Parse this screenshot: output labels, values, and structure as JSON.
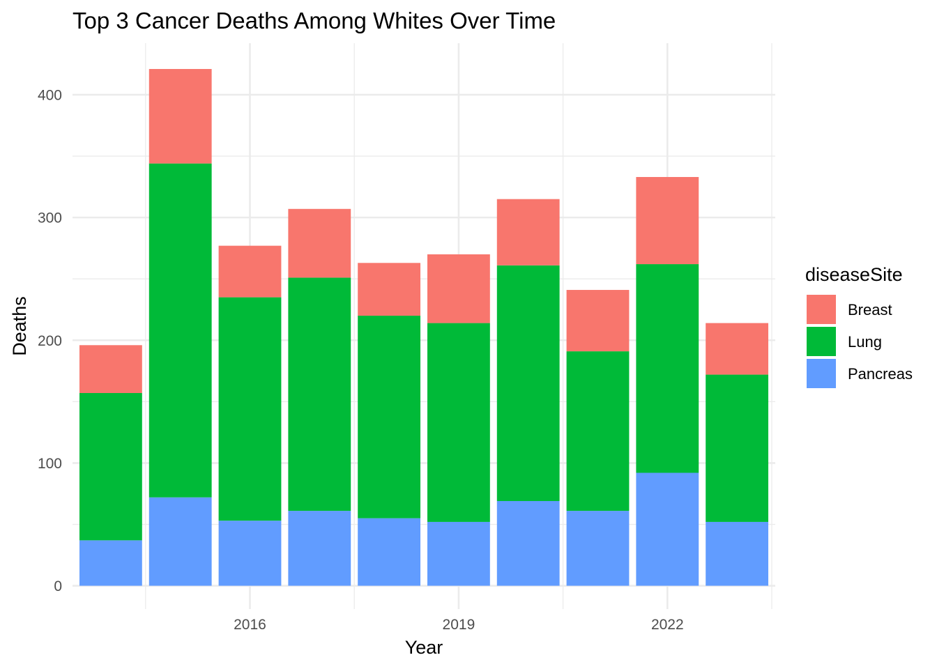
{
  "chart_data": {
    "type": "bar",
    "stacked": true,
    "title": "Top 3 Cancer Deaths Among Whites Over Time",
    "xlabel": "Year",
    "ylabel": "Deaths",
    "x": [
      2014,
      2015,
      2016,
      2017,
      2018,
      2019,
      2020,
      2021,
      2022,
      2023
    ],
    "x_ticks": [
      2016,
      2019,
      2022
    ],
    "xlim": [
      2013.45,
      2023.55
    ],
    "ylim": [
      -19,
      442
    ],
    "y_ticks": [
      0,
      100,
      200,
      300,
      400
    ],
    "grid": true,
    "legend": {
      "title": "diseaseSite",
      "placement": "right"
    },
    "series": [
      {
        "name": "Pancreas",
        "color": "#619CFF",
        "values": [
          37,
          72,
          53,
          61,
          55,
          52,
          69,
          61,
          92,
          52
        ]
      },
      {
        "name": "Lung",
        "color": "#00BA38",
        "values": [
          120,
          272,
          182,
          190,
          165,
          162,
          192,
          130,
          170,
          120
        ]
      },
      {
        "name": "Breast",
        "color": "#F8766D",
        "values": [
          39,
          77,
          42,
          56,
          43,
          56,
          54,
          50,
          71,
          42
        ]
      }
    ],
    "legend_order": [
      "Breast",
      "Lung",
      "Pancreas"
    ]
  }
}
